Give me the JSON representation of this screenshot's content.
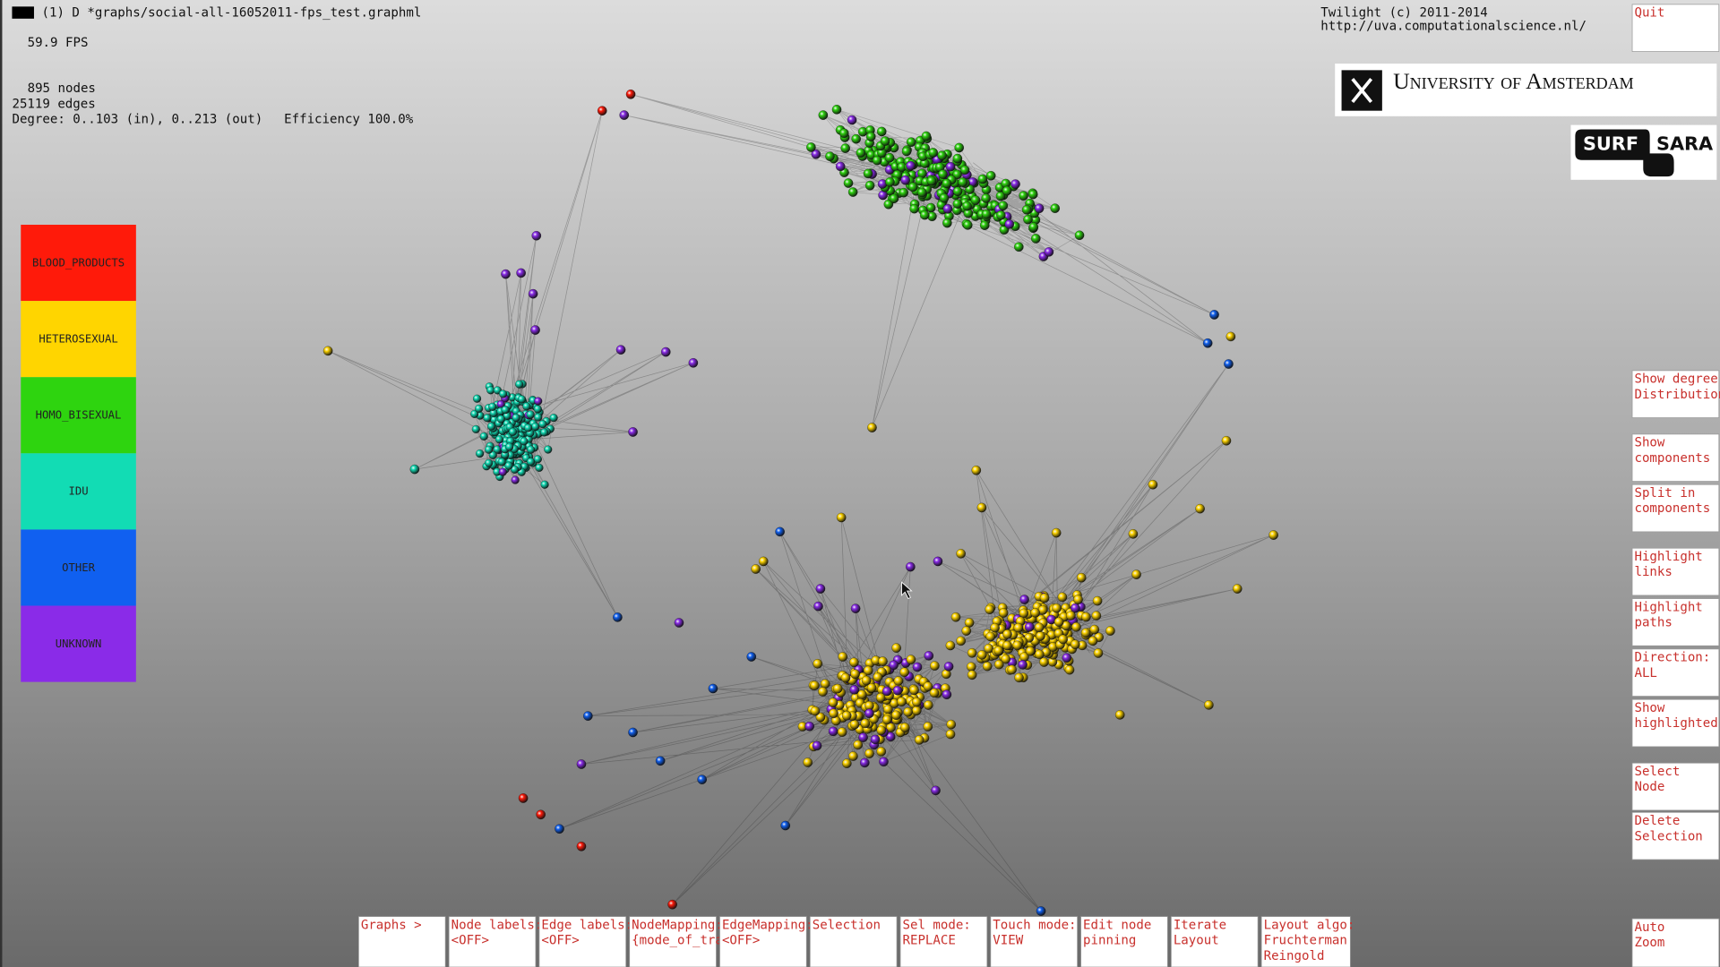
{
  "title_bar": {
    "text": "(1) D *graphs/social-all-16052011-fps_test.graphml"
  },
  "stats": {
    "fps": "59.9 FPS",
    "nodes": "895 nodes",
    "edges": "25119 edges",
    "degree": "Degree: 0..103 (in), 0..213 (out)",
    "efficiency": "Efficiency 100.0%"
  },
  "credits": {
    "copyright": "Twilight (c) 2011-2014",
    "url": "http://uva.computationalscience.nl/"
  },
  "logos": {
    "uva": "University of Amsterdam",
    "surf": "SURF",
    "sara": "SARA"
  },
  "legend": [
    {
      "label": "BLOOD_PRODUCTS",
      "color": "#ff1a0a"
    },
    {
      "label": "HETEROSEXUAL",
      "color": "#ffd500"
    },
    {
      "label": "HOMO_BISEXUAL",
      "color": "#2ed40f"
    },
    {
      "label": "IDU",
      "color": "#12dcb4"
    },
    {
      "label": "OTHER",
      "color": "#1060f0"
    },
    {
      "label": "UNKNOWN",
      "color": "#8a2be8"
    }
  ],
  "side_buttons": [
    {
      "lines": [
        "Quit"
      ]
    },
    {
      "lines": [
        "Show degree",
        "Distribution"
      ]
    },
    {
      "lines": [
        "Show",
        "components"
      ]
    },
    {
      "lines": [
        "Split in",
        "components"
      ]
    },
    {
      "lines": [
        "Highlight",
        "links"
      ]
    },
    {
      "lines": [
        "Highlight",
        "paths"
      ]
    },
    {
      "lines": [
        "Direction:",
        "ALL"
      ]
    },
    {
      "lines": [
        "Show",
        "highlighted"
      ]
    },
    {
      "lines": [
        "Select",
        "Node"
      ]
    },
    {
      "lines": [
        "Delete",
        "Selection"
      ]
    },
    {
      "lines": [
        "Auto",
        "Zoom"
      ]
    }
  ],
  "bottom_buttons": [
    {
      "lines": [
        "Graphs >"
      ]
    },
    {
      "lines": [
        "Node labels:",
        "<OFF>"
      ]
    },
    {
      "lines": [
        "Edge labels:",
        "<OFF>"
      ]
    },
    {
      "lines": [
        "NodeMapping:",
        "{mode_of_tra"
      ]
    },
    {
      "lines": [
        "EdgeMapping:",
        "<OFF>"
      ]
    },
    {
      "lines": [
        "Selection"
      ]
    },
    {
      "lines": [
        "Sel mode:",
        "REPLACE"
      ]
    },
    {
      "lines": [
        "Touch mode:",
        "VIEW"
      ]
    },
    {
      "lines": [
        "Edit node",
        "pinning"
      ]
    },
    {
      "lines": [
        "Iterate",
        "Layout"
      ]
    },
    {
      "lines": [
        "Layout algo:",
        "Fruchterman",
        "Reingold"
      ]
    }
  ]
}
